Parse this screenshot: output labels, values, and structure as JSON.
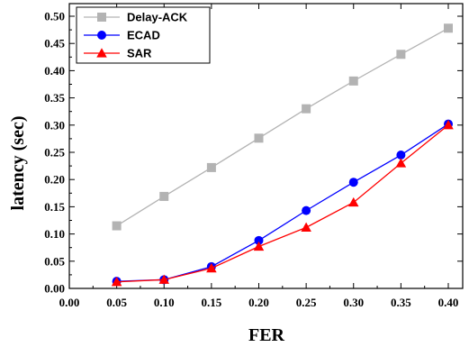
{
  "chart_data": {
    "type": "line",
    "title": "",
    "xlabel": "FER",
    "ylabel": "latency (sec)",
    "x": [
      0.05,
      0.1,
      0.15,
      0.2,
      0.25,
      0.3,
      0.35,
      0.4
    ],
    "xlim": [
      0.0,
      0.4
    ],
    "ylim": [
      0.0,
      0.5
    ],
    "xticks": [
      "0.00",
      "0.05",
      "0.10",
      "0.15",
      "0.20",
      "0.25",
      "0.30",
      "0.35",
      "0.40"
    ],
    "yticks": [
      "0.00",
      "0.05",
      "0.10",
      "0.15",
      "0.20",
      "0.25",
      "0.30",
      "0.35",
      "0.40",
      "0.45",
      "0.50"
    ],
    "grid": false,
    "legend_position": "top-left",
    "series": [
      {
        "name": "Delay-ACK",
        "color": "#b3b3b3",
        "marker": "square",
        "values": [
          0.115,
          0.169,
          0.222,
          0.276,
          0.33,
          0.381,
          0.43,
          0.478
        ]
      },
      {
        "name": "ECAD",
        "color": "#0000ff",
        "marker": "circle",
        "values": [
          0.013,
          0.016,
          0.04,
          0.088,
          0.143,
          0.195,
          0.245,
          0.302
        ]
      },
      {
        "name": "SAR",
        "color": "#ff0000",
        "marker": "triangle",
        "values": [
          0.012,
          0.016,
          0.037,
          0.077,
          0.112,
          0.158,
          0.23,
          0.3
        ]
      }
    ]
  }
}
